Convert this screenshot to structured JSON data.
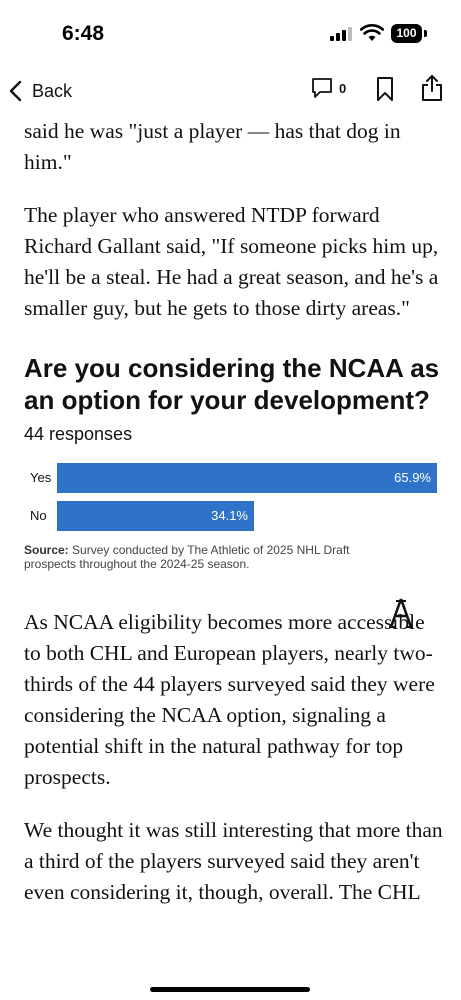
{
  "status_bar": {
    "time": "6:48",
    "battery": "100"
  },
  "nav": {
    "back_label": "Back",
    "comment_count": "0"
  },
  "article": {
    "paragraphs": [
      "said he was \"just a player — has that dog in him.\"",
      "The player who answered NTDP forward Richard Gallant said, \"If someone picks him up, he'll be a steal. He had a great season, and he's a smaller guy, but he gets to those dirty areas.\"",
      "As NCAA eligibility becomes more accessible to both CHL and European players, nearly two-thirds of the 44 players surveyed said they were considering the NCAA option, signaling a potential shift in the natural pathway for top prospects.",
      "We thought it was still interesting that more than a third of the players surveyed said they aren't even considering it, though, overall. The CHL"
    ]
  },
  "poll": {
    "title": "Are you considering the NCAA as an option for your development?",
    "responses": "44 responses",
    "source_label": "Source:",
    "source_text": " Survey conducted by The Athletic of 2025 NHL Draft prospects throughout the 2024-25 season.",
    "logo_icon": "the-athletic-logo-icon",
    "bar_color": "#2f73c8"
  },
  "chart_data": {
    "type": "bar",
    "orientation": "horizontal",
    "title": "Are you considering the NCAA as an option for your development?",
    "categories": [
      "Yes",
      "No"
    ],
    "values": [
      65.9,
      34.1
    ],
    "value_labels": [
      "65.9%",
      "34.1%"
    ],
    "xlim": [
      0,
      65.9
    ]
  }
}
